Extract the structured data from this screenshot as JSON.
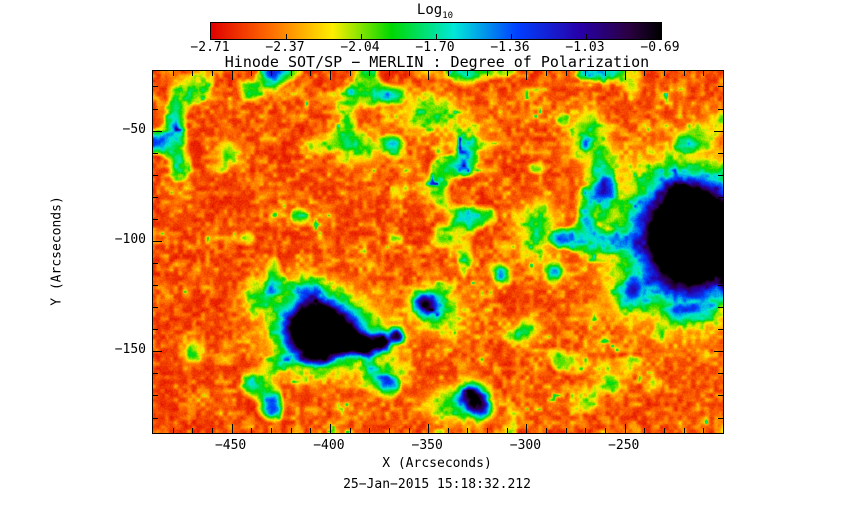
{
  "title": "Hinode SOT/SP − MERLIN : Degree of Polarization",
  "timestamp": "25−Jan−2015 15:18:32.212",
  "colorbar": {
    "label_text": "Log",
    "label_sub": "10",
    "tick_labels": [
      "−2.71",
      "−2.37",
      "−2.04",
      "−1.70",
      "−1.36",
      "−1.03",
      "−0.69"
    ]
  },
  "axes": {
    "xlabel": "X (Arcseconds)",
    "ylabel": "Y (Arcseconds)",
    "x_tick_labels": [
      "−450",
      "−400",
      "−350",
      "−300",
      "−250"
    ],
    "y_tick_labels": [
      "−50",
      "−100",
      "−150"
    ]
  },
  "chart_data": {
    "type": "heatmap",
    "title": "Hinode SOT/SP − MERLIN : Degree of Polarization",
    "xlabel": "X (Arcseconds)",
    "ylabel": "Y (Arcseconds)",
    "value_scale": "Log10",
    "x_range": [
      -490,
      -200
    ],
    "y_range": [
      -187,
      -23
    ],
    "x_ticks": [
      -450,
      -400,
      -350,
      -300,
      -250
    ],
    "y_ticks": [
      -50,
      -100,
      -150
    ],
    "colorbar_ticks": [
      -2.71,
      -2.37,
      -2.04,
      -1.7,
      -1.36,
      -1.03,
      -0.69
    ],
    "value_range": [
      -2.71,
      -0.69
    ],
    "colormap": [
      {
        "pos": 0.0,
        "hex": "#e00000"
      },
      {
        "pos": 0.13,
        "hex": "#ff6a00"
      },
      {
        "pos": 0.27,
        "hex": "#ffee00"
      },
      {
        "pos": 0.4,
        "hex": "#00d800"
      },
      {
        "pos": 0.54,
        "hex": "#00e8d8"
      },
      {
        "pos": 0.68,
        "hex": "#0040ff"
      },
      {
        "pos": 0.82,
        "hex": "#2800a8"
      },
      {
        "pos": 0.93,
        "hex": "#2a0040"
      },
      {
        "pos": 1.0,
        "hex": "#000000"
      }
    ],
    "background_level": -2.5,
    "features": [
      {
        "x": -216,
        "y": -98,
        "sx": 15,
        "sy": 16,
        "amp": 1.3,
        "note": "main sunspot core (right, cut at edge)"
      },
      {
        "x": -213,
        "y": -96,
        "sx": 8,
        "sy": 9,
        "amp": 0.9,
        "note": "umbra"
      },
      {
        "x": -220,
        "y": -100,
        "sx": 24,
        "sy": 21,
        "amp": 0.55,
        "note": "penumbra / halo"
      },
      {
        "x": -262,
        "y": -72,
        "sx": 5,
        "sy": 12,
        "amp": 0.4
      },
      {
        "x": -270,
        "y": -50,
        "sx": 6,
        "sy": 7,
        "amp": 0.3
      },
      {
        "x": -248,
        "y": -125,
        "sx": 6,
        "sy": 5,
        "amp": 0.35
      },
      {
        "x": -408,
        "y": -140,
        "sx": 9,
        "sy": 7.5,
        "amp": 1.35,
        "note": "secondary sunspot core (left)"
      },
      {
        "x": -407,
        "y": -140,
        "sx": 16,
        "sy": 12,
        "amp": 0.5,
        "note": "halo"
      },
      {
        "x": -393,
        "y": -145,
        "sx": 4,
        "sy": 3.5,
        "amp": 0.95,
        "note": "pore"
      },
      {
        "x": -383,
        "y": -147,
        "sx": 3.5,
        "sy": 3,
        "amp": 0.95,
        "note": "pore"
      },
      {
        "x": -374,
        "y": -146,
        "sx": 3,
        "sy": 2.8,
        "amp": 0.9,
        "note": "pore"
      },
      {
        "x": -366,
        "y": -143,
        "sx": 2.6,
        "sy": 2.4,
        "amp": 0.8,
        "note": "pore"
      },
      {
        "x": -390,
        "y": -140,
        "sx": 12,
        "sy": 8,
        "amp": 0.35
      },
      {
        "x": -352,
        "y": -128,
        "sx": 4,
        "sy": 3.5,
        "amp": 0.7
      },
      {
        "x": -345,
        "y": -132,
        "sx": 9,
        "sy": 7,
        "amp": 0.3
      },
      {
        "x": -328,
        "y": -170,
        "sx": 5,
        "sy": 4,
        "amp": 0.75
      },
      {
        "x": -323,
        "y": -176,
        "sx": 4,
        "sy": 3.5,
        "amp": 0.6
      },
      {
        "x": -340,
        "y": -174,
        "sx": 9,
        "sy": 5,
        "amp": 0.3
      },
      {
        "x": -313,
        "y": -115,
        "sx": 3,
        "sy": 3,
        "amp": 0.55
      },
      {
        "x": -286,
        "y": -114,
        "sx": 3,
        "sy": 3,
        "amp": 0.5
      },
      {
        "x": -295,
        "y": -95,
        "sx": 7,
        "sy": 9,
        "amp": 0.3
      },
      {
        "x": -350,
        "y": -42,
        "sx": 11,
        "sy": 6,
        "amp": 0.3
      },
      {
        "x": -330,
        "y": -56,
        "sx": 6,
        "sy": 5,
        "amp": 0.28
      },
      {
        "x": -385,
        "y": -58,
        "sx": 8,
        "sy": 5,
        "amp": 0.3
      },
      {
        "x": -435,
        "y": -125,
        "sx": 6,
        "sy": 5,
        "amp": 0.3
      },
      {
        "x": -452,
        "y": -60,
        "sx": 4,
        "sy": 4,
        "amp": 0.3
      },
      {
        "x": -470,
        "y": -150,
        "sx": 4,
        "sy": 4,
        "amp": 0.28
      },
      {
        "x": -300,
        "y": -140,
        "sx": 5,
        "sy": 4,
        "amp": 0.3
      },
      {
        "x": -372,
        "y": -160,
        "sx": 8,
        "sy": 5,
        "amp": 0.3
      },
      {
        "x": -412,
        "y": -122,
        "sx": 5,
        "sy": 4,
        "amp": 0.35
      }
    ]
  }
}
